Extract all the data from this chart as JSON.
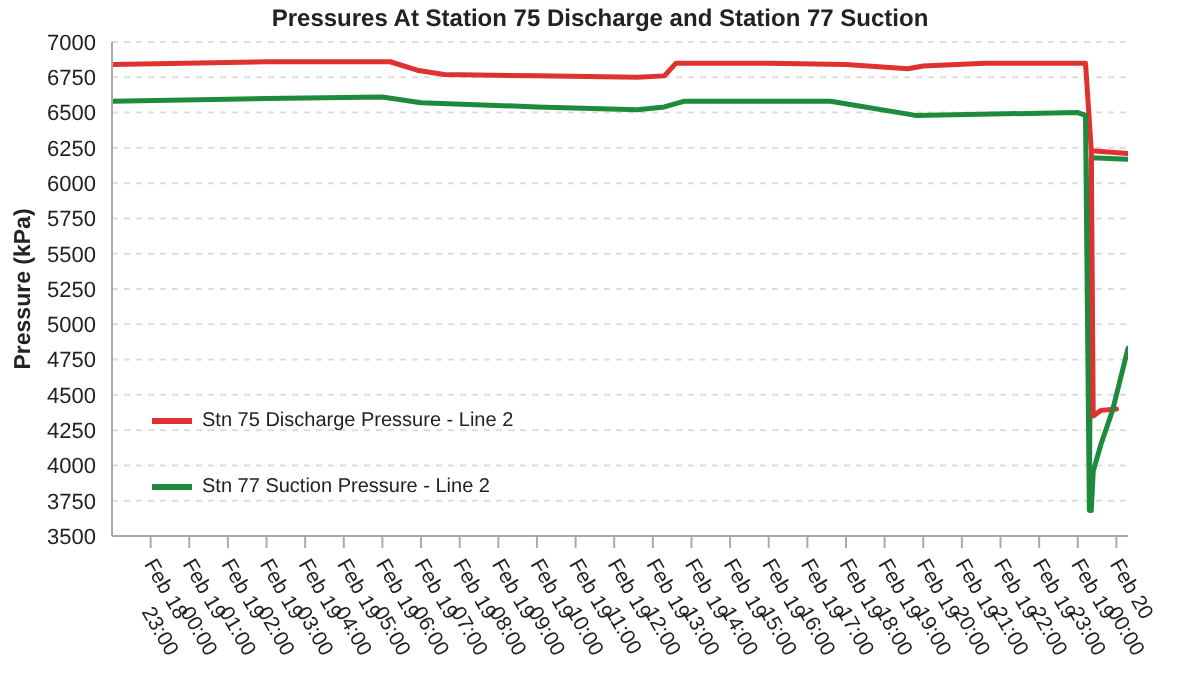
{
  "chart_data": {
    "type": "line",
    "title": "Pressures At Station 75 Discharge and Station 77 Suction",
    "ylabel": "Pressure (kPa)",
    "xlim": [
      "--02-18T22:00",
      "--02-20T00:18"
    ],
    "ylim": [
      3500,
      7000
    ],
    "yticks": [
      3500,
      3750,
      4000,
      4250,
      4500,
      4750,
      5000,
      5250,
      5500,
      5750,
      6000,
      6250,
      6500,
      6750,
      7000
    ],
    "xticks": [
      {
        "value": "--02-18T23:00",
        "label": "Feb 18 23:00"
      },
      {
        "value": "--02-19T00:00",
        "label": "Feb 19 00:00"
      },
      {
        "value": "--02-19T01:00",
        "label": "Feb 19 01:00"
      },
      {
        "value": "--02-19T02:00",
        "label": "Feb 19 02:00"
      },
      {
        "value": "--02-19T03:00",
        "label": "Feb 19 03:00"
      },
      {
        "value": "--02-19T04:00",
        "label": "Feb 19 04:00"
      },
      {
        "value": "--02-19T05:00",
        "label": "Feb 19 05:00"
      },
      {
        "value": "--02-19T06:00",
        "label": "Feb 19 06:00"
      },
      {
        "value": "--02-19T07:00",
        "label": "Feb 19 07:00"
      },
      {
        "value": "--02-19T08:00",
        "label": "Feb 19 08:00"
      },
      {
        "value": "--02-19T09:00",
        "label": "Feb 19 09:00"
      },
      {
        "value": "--02-19T10:00",
        "label": "Feb 19 10:00"
      },
      {
        "value": "--02-19T11:00",
        "label": "Feb 19 11:00"
      },
      {
        "value": "--02-19T12:00",
        "label": "Feb 19 12:00"
      },
      {
        "value": "--02-19T13:00",
        "label": "Feb 19 13:00"
      },
      {
        "value": "--02-19T14:00",
        "label": "Feb 19 14:00"
      },
      {
        "value": "--02-19T15:00",
        "label": "Feb 19 15:00"
      },
      {
        "value": "--02-19T16:00",
        "label": "Feb 19 16:00"
      },
      {
        "value": "--02-19T17:00",
        "label": "Feb 19 17:00"
      },
      {
        "value": "--02-19T18:00",
        "label": "Feb 19 18:00"
      },
      {
        "value": "--02-19T19:00",
        "label": "Feb 19 19:00"
      },
      {
        "value": "--02-19T20:00",
        "label": "Feb 19 20:00"
      },
      {
        "value": "--02-19T21:00",
        "label": "Feb 19 21:00"
      },
      {
        "value": "--02-19T22:00",
        "label": "Feb 19 22:00"
      },
      {
        "value": "--02-19T23:00",
        "label": "Feb 19 23:00"
      },
      {
        "value": "--02-20T00:00",
        "label": "Feb 20 00:00"
      }
    ],
    "grid": "y",
    "legend": "bottom left",
    "marker": "none",
    "line_style": "solid",
    "series": [
      {
        "name": "Stn 75 Discharge Pressure - Line 2",
        "color": "#e03131",
        "x": [
          "--02-18T22:00",
          "--02-19T02:00",
          "--02-19T05:12",
          "--02-19T05:54",
          "--02-19T06:36",
          "--02-19T09:00",
          "--02-19T11:36",
          "--02-19T12:18",
          "--02-19T12:36",
          "--02-19T15:00",
          "--02-19T17:00",
          "--02-19T18:36",
          "--02-19T19:00",
          "--02-19T20:36",
          "--02-19T23:12",
          "--02-19T23:21",
          "--02-20T00:18"
        ],
        "values": [
          6840,
          6860,
          6860,
          6800,
          6770,
          6760,
          6750,
          6760,
          6850,
          6850,
          6840,
          6810,
          6830,
          6850,
          6850,
          6230,
          6210
        ]
      },
      {
        "name": "Stn 77 Suction Pressure - Line 2",
        "color": "#1e8a3c",
        "x": [
          "--02-18T22:00",
          "--02-19T02:00",
          "--02-19T05:00",
          "--02-19T06:00",
          "--02-19T09:00",
          "--02-19T11:36",
          "--02-19T12:18",
          "--02-19T12:48",
          "--02-19T16:36",
          "--02-19T18:48",
          "--02-19T23:00",
          "--02-19T23:12",
          "--02-19T23:18",
          "--02-19T23:21",
          "--02-20T00:18"
        ],
        "values": [
          6580,
          6600,
          6610,
          6570,
          6540,
          6520,
          6540,
          6580,
          6580,
          6480,
          6500,
          6480,
          3680,
          6180,
          6170
        ]
      },
      {
        "color": "#e03131",
        "x": [
          "--02-19T23:21",
          "--02-19T23:24",
          "--02-19T23:36",
          "--02-20T00:00"
        ],
        "values": [
          6230,
          4350,
          4390,
          4400
        ]
      },
      {
        "color": "#1e8a3c",
        "x": [
          "--02-19T23:21",
          "--02-19T23:24",
          "--02-19T23:36",
          "--02-19T23:54",
          "--02-20T00:18"
        ],
        "values": [
          3680,
          3960,
          4150,
          4390,
          4830
        ]
      }
    ]
  }
}
